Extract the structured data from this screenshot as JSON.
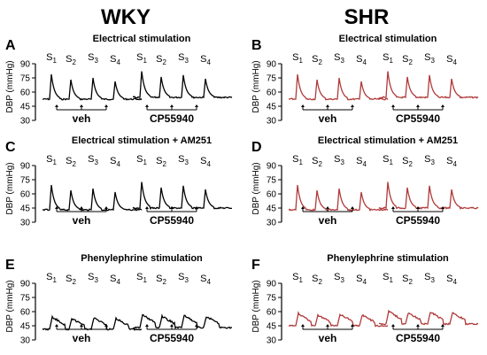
{
  "columns": {
    "left": "WKY",
    "right": "SHR"
  },
  "colors": {
    "wky_trace": "#000000",
    "shr_trace": "#b03a3a"
  },
  "axis": {
    "ylabel": "DBP (mmHg)",
    "ticks": [
      "90",
      "75",
      "60",
      "45",
      "30"
    ]
  },
  "stim_labels": [
    "S1",
    "S2",
    "S3",
    "S4"
  ],
  "panels": [
    {
      "letter": "A",
      "title": "Electrical stimulation",
      "group": "WKY",
      "label_left": "veh",
      "label_right": "CP55940"
    },
    {
      "letter": "B",
      "title": "Electrical stimulation",
      "group": "SHR",
      "label_left": "veh",
      "label_right": "CP55940"
    },
    {
      "letter": "C",
      "title": "Electrical stimulation + AM251",
      "group": "WKY",
      "label_left": "veh",
      "label_right": "CP55940"
    },
    {
      "letter": "D",
      "title": "Electrical stimulation + AM251",
      "group": "SHR",
      "label_left": "veh",
      "label_right": "CP55940"
    },
    {
      "letter": "E",
      "title": "Phenylephrine stimulation",
      "group": "WKY",
      "label_left": "veh",
      "label_right": "CP55940"
    },
    {
      "letter": "F",
      "title": "Phenylephrine stimulation",
      "group": "SHR",
      "label_left": "veh",
      "label_right": "CP55940"
    }
  ]
}
